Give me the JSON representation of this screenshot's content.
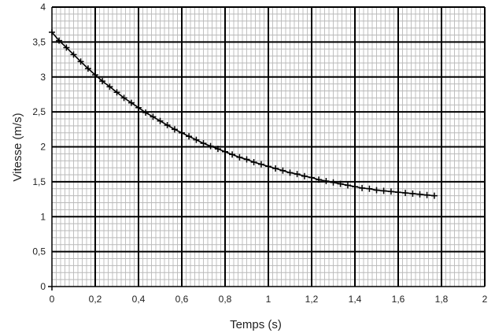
{
  "chart_data": {
    "type": "scatter",
    "xlabel": "Temps (s)",
    "ylabel": "Vitesse (m/s)",
    "xlim": [
      0,
      2
    ],
    "ylim": [
      0,
      4
    ],
    "x_ticks": [
      "0",
      "0,2",
      "0,4",
      "0,6",
      "0,8",
      "1",
      "1,2",
      "1,4",
      "1,6",
      "1,8",
      "2"
    ],
    "y_ticks": [
      "0",
      "0,5",
      "1",
      "1,5",
      "2",
      "2,5",
      "3",
      "3,5",
      "4"
    ],
    "grid": "on",
    "legend": "none",
    "marker": "cross",
    "connected": true,
    "series": [
      {
        "color": "#000000",
        "x": [
          0.0,
          0.033,
          0.067,
          0.1,
          0.133,
          0.167,
          0.2,
          0.233,
          0.267,
          0.3,
          0.333,
          0.367,
          0.4,
          0.433,
          0.467,
          0.5,
          0.533,
          0.567,
          0.6,
          0.633,
          0.667,
          0.7,
          0.733,
          0.767,
          0.8,
          0.833,
          0.867,
          0.9,
          0.933,
          0.967,
          1.0,
          1.033,
          1.067,
          1.1,
          1.133,
          1.167,
          1.2,
          1.233,
          1.267,
          1.3,
          1.333,
          1.367,
          1.4,
          1.433,
          1.467,
          1.5,
          1.533,
          1.567,
          1.6,
          1.633,
          1.667,
          1.7,
          1.733,
          1.767
        ],
        "y": [
          3.64,
          3.52,
          3.42,
          3.32,
          3.22,
          3.12,
          3.03,
          2.94,
          2.86,
          2.78,
          2.7,
          2.63,
          2.56,
          2.49,
          2.43,
          2.37,
          2.31,
          2.25,
          2.2,
          2.15,
          2.1,
          2.05,
          2.01,
          1.97,
          1.93,
          1.89,
          1.85,
          1.82,
          1.78,
          1.75,
          1.72,
          1.69,
          1.66,
          1.63,
          1.61,
          1.58,
          1.56,
          1.53,
          1.51,
          1.49,
          1.47,
          1.45,
          1.43,
          1.41,
          1.4,
          1.38,
          1.37,
          1.36,
          1.35,
          1.34,
          1.33,
          1.32,
          1.31,
          1.3
        ]
      }
    ]
  }
}
